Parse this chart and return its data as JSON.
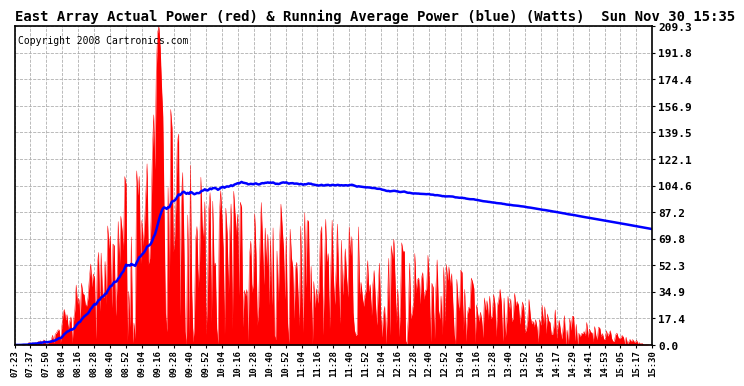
{
  "title": "East Array Actual Power (red) & Running Average Power (blue) (Watts)  Sun Nov 30 15:35",
  "copyright": "Copyright 2008 Cartronics.com",
  "yticks": [
    0.0,
    17.4,
    34.9,
    52.3,
    69.8,
    87.2,
    104.6,
    122.1,
    139.5,
    156.9,
    174.4,
    191.8,
    209.3
  ],
  "xtick_labels": [
    "07:23",
    "07:37",
    "07:50",
    "08:04",
    "08:16",
    "08:28",
    "08:40",
    "08:52",
    "09:04",
    "09:16",
    "09:28",
    "09:40",
    "09:52",
    "10:04",
    "10:16",
    "10:28",
    "10:40",
    "10:52",
    "11:04",
    "11:16",
    "11:28",
    "11:40",
    "11:52",
    "12:04",
    "12:16",
    "12:28",
    "12:40",
    "12:52",
    "13:04",
    "13:16",
    "13:28",
    "13:40",
    "13:52",
    "14:05",
    "14:17",
    "14:29",
    "14:41",
    "14:53",
    "15:05",
    "15:17",
    "15:30"
  ],
  "ylim": [
    0.0,
    209.3
  ],
  "actual_color": "#ff0000",
  "avg_color": "#0000ff",
  "bg_color": "#ffffff",
  "grid_color": "#b0b0b0",
  "title_fontsize": 10,
  "copyright_fontsize": 7
}
